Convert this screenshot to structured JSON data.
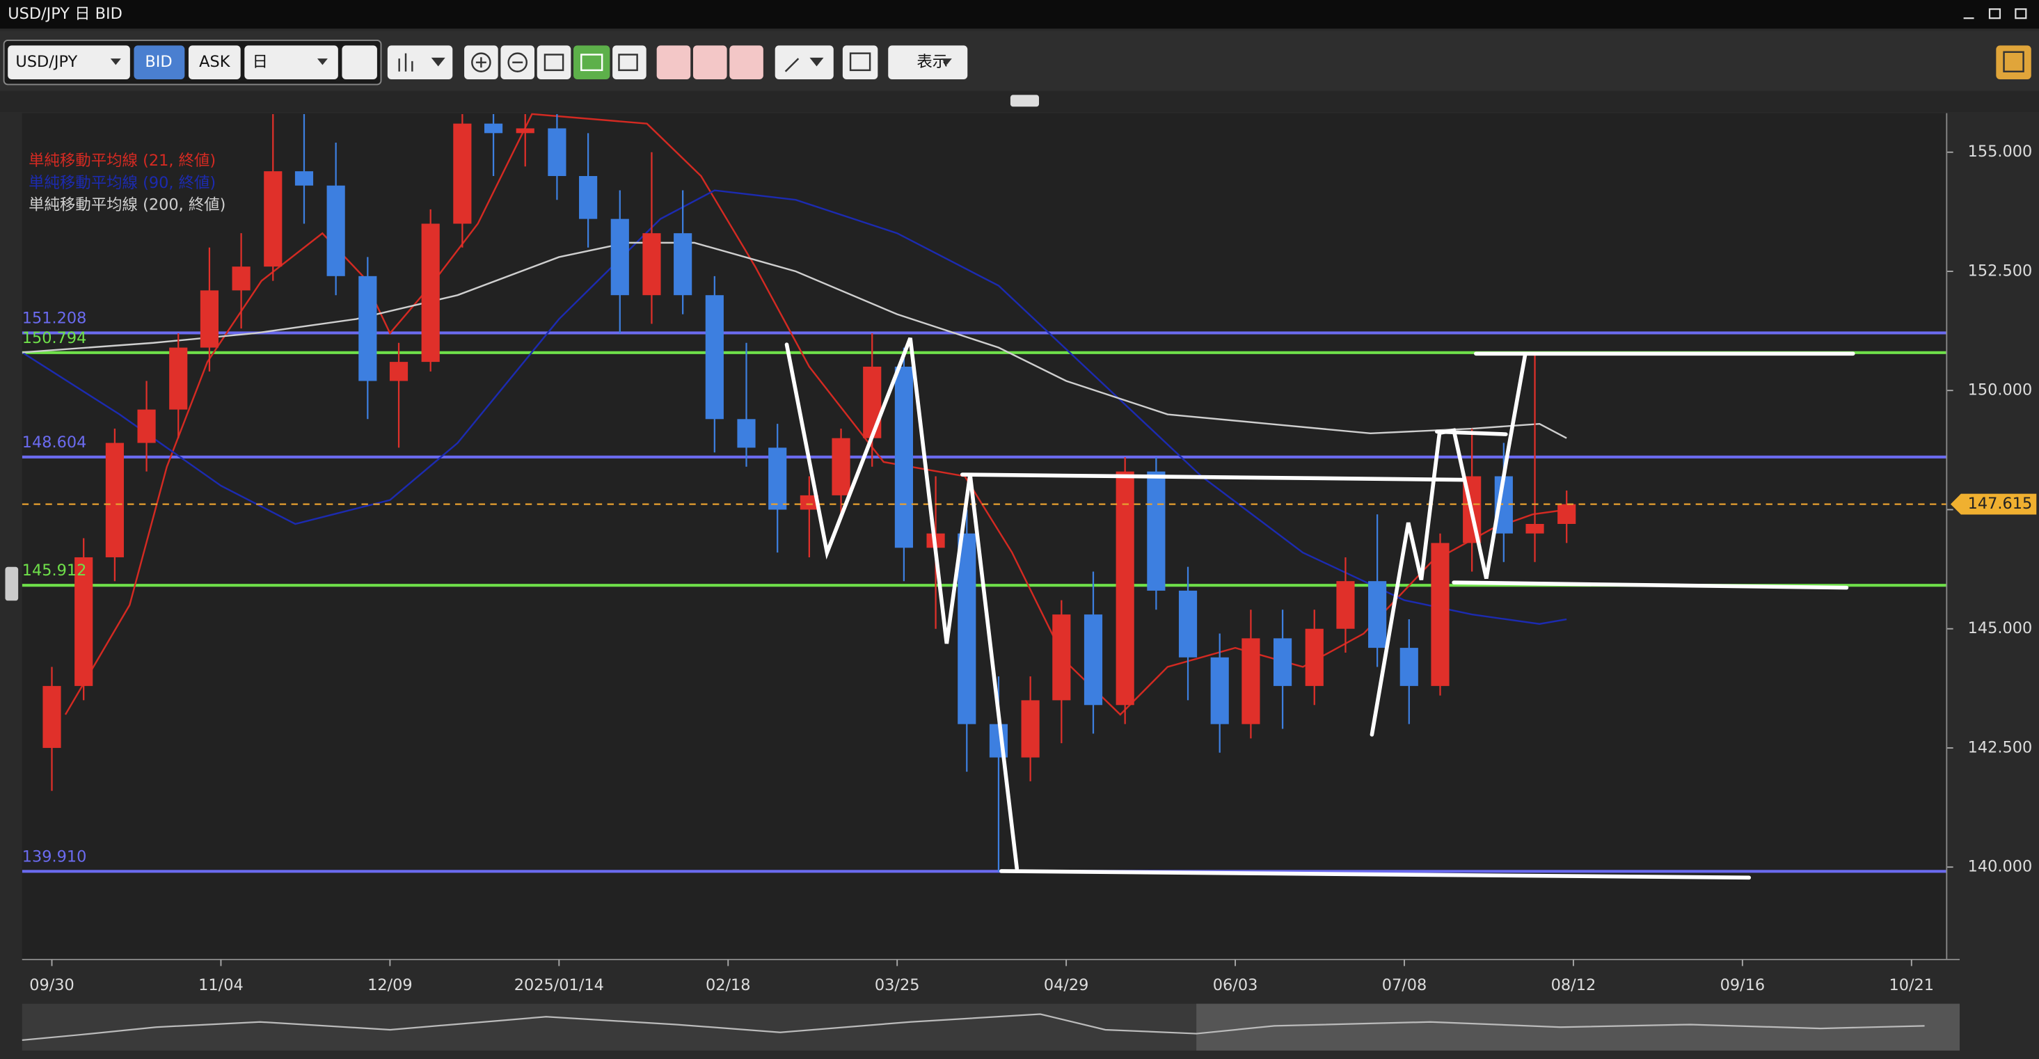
{
  "window": {
    "title": "USD/JPY 日 BID"
  },
  "toolbar": {
    "symbol": "USD/JPY",
    "bid": "BID",
    "ask": "ASK",
    "period": "日",
    "display": "表示"
  },
  "chart_data": {
    "type": "candlestick",
    "x": [
      0,
      4.7,
      9.3,
      14,
      18.7,
      23.3,
      28,
      32.7,
      37.3,
      42,
      46.7,
      51.3,
      56,
      60.7,
      65.3,
      70,
      74.7,
      79.3,
      84,
      88.7,
      93.3,
      98,
      102.7,
      107.3,
      112,
      116.7,
      121.3,
      126,
      130.7,
      135.3,
      140,
      144.7,
      149.3,
      154,
      158.7,
      163.3,
      168,
      172.7,
      177.3,
      182,
      186.7,
      191.3,
      196,
      200.7,
      205.3,
      210,
      214.7,
      219.3,
      224
    ],
    "open": [
      142.5,
      143.8,
      146.5,
      148.9,
      149.6,
      150.9,
      152.1,
      152.6,
      154.6,
      154.3,
      152.4,
      150.2,
      150.6,
      153.5,
      155.6,
      155.4,
      155.5,
      154.5,
      153.6,
      152.0,
      153.3,
      152.0,
      149.4,
      148.8,
      147.5,
      147.8,
      149.0,
      150.5,
      146.7,
      147.0,
      143.0,
      142.3,
      143.5,
      145.3,
      143.4,
      148.3,
      145.8,
      144.4,
      143.0,
      144.8,
      143.8,
      145.0,
      146.0,
      144.6,
      143.8,
      146.8,
      148.2,
      147.0,
      147.2
    ],
    "high": [
      144.2,
      146.9,
      149.2,
      150.2,
      151.2,
      153.0,
      153.3,
      155.8,
      155.8,
      155.2,
      152.8,
      151.0,
      153.8,
      155.8,
      155.8,
      155.8,
      155.8,
      155.4,
      154.2,
      155.0,
      154.2,
      152.4,
      151.0,
      149.3,
      148.2,
      149.2,
      151.2,
      150.9,
      148.2,
      147.5,
      144.0,
      144.0,
      145.6,
      146.2,
      148.6,
      148.6,
      146.3,
      144.9,
      145.4,
      145.4,
      145.4,
      146.5,
      147.4,
      145.2,
      147.0,
      149.2,
      148.9,
      150.8,
      147.9
    ],
    "low": [
      141.6,
      143.5,
      146.0,
      148.3,
      149.0,
      150.4,
      151.3,
      152.3,
      153.5,
      152.0,
      149.4,
      148.8,
      150.4,
      153.0,
      154.5,
      154.7,
      154.0,
      153.0,
      151.2,
      151.4,
      151.6,
      148.7,
      148.4,
      146.6,
      146.5,
      147.4,
      148.4,
      146.0,
      145.0,
      142.0,
      139.9,
      141.8,
      142.6,
      142.8,
      143.0,
      145.4,
      143.5,
      142.4,
      142.7,
      142.9,
      143.4,
      144.5,
      144.2,
      143.0,
      143.6,
      146.2,
      146.4,
      146.4,
      146.8
    ],
    "close": [
      143.8,
      146.5,
      148.9,
      149.6,
      150.9,
      152.1,
      152.6,
      154.6,
      154.3,
      152.4,
      150.2,
      150.6,
      153.5,
      155.6,
      155.4,
      155.5,
      154.5,
      153.6,
      152.0,
      153.3,
      152.0,
      149.4,
      148.8,
      147.5,
      147.8,
      149.0,
      150.5,
      146.7,
      147.0,
      143.0,
      142.3,
      143.5,
      145.3,
      143.4,
      148.3,
      145.8,
      144.4,
      143.0,
      144.8,
      143.8,
      145.0,
      146.0,
      144.6,
      143.8,
      146.8,
      148.2,
      147.0,
      147.2,
      147.615
    ],
    "up_color": "#e0302a",
    "down_color": "#3d7fe0",
    "series": [
      {
        "name": "単純移動平均線 (21, 終値)",
        "color": "#d42a22",
        "x": [
          2,
          11.5,
          17,
          23,
          31,
          40,
          46,
          50,
          56,
          63,
          71,
          88,
          96,
          104,
          112,
          123,
          135,
          142,
          150,
          158,
          165,
          175,
          185,
          194,
          204,
          213,
          219,
          224
        ],
        "values": [
          143.2,
          145.5,
          148.4,
          150.6,
          152.3,
          153.3,
          152.4,
          151.2,
          152.2,
          153.5,
          155.8,
          155.6,
          154.5,
          152.6,
          150.5,
          148.5,
          148.2,
          146.6,
          144.3,
          143.2,
          144.2,
          144.6,
          144.2,
          144.9,
          146.4,
          147.1,
          147.4,
          147.5
        ]
      },
      {
        "name": "単純移動平均線 (90, 終値)",
        "color": "#1c2bb0",
        "x": [
          -4.4,
          10,
          25,
          36,
          50,
          60,
          75,
          90,
          98,
          110,
          125,
          140,
          155,
          170,
          185,
          200,
          210,
          220,
          224
        ],
        "values": [
          150.8,
          149.5,
          148.0,
          147.2,
          147.7,
          148.9,
          151.5,
          153.6,
          154.2,
          154.0,
          153.3,
          152.2,
          150.2,
          148.2,
          146.6,
          145.6,
          145.3,
          145.1,
          145.2
        ]
      },
      {
        "name": "単純移動平均線 (200, 終値)",
        "color": "#cfcfcf",
        "x": [
          -4.4,
          15,
          30,
          45,
          60,
          75,
          85,
          95,
          110,
          125,
          140,
          150,
          165,
          180,
          195,
          210,
          220,
          224
        ],
        "values": [
          150.8,
          151.0,
          151.2,
          151.5,
          152.0,
          152.8,
          153.1,
          153.1,
          152.5,
          151.6,
          150.9,
          150.2,
          149.5,
          149.3,
          149.1,
          149.2,
          149.3,
          149.0
        ]
      }
    ],
    "levels": [
      {
        "value": 151.208,
        "color": "#6b6bf0"
      },
      {
        "value": 150.794,
        "color": "#6fe04a"
      },
      {
        "value": 148.604,
        "color": "#6b6bf0"
      },
      {
        "value": 145.912,
        "color": "#6fe04a"
      },
      {
        "value": {
          "value": 139.91,
          "label": "139.910"
        },
        "color": "#6b6bf0"
      }
    ],
    "current_price": 147.615,
    "xlim": [
      -4.4,
      280.2
    ],
    "xticks": [
      {
        "value": 0,
        "label": "09/30"
      },
      {
        "value": 25,
        "label": "11/04"
      },
      {
        "value": 50,
        "label": "12/09"
      },
      {
        "value": 75,
        "label": "2025/01/14"
      },
      {
        "value": 100,
        "label": "02/18"
      },
      {
        "value": 125,
        "label": "03/25"
      },
      {
        "value": 150,
        "label": "04/29"
      },
      {
        "value": 175,
        "label": "06/03"
      },
      {
        "value": 200,
        "label": "07/08"
      },
      {
        "value": 225,
        "label": "08/12"
      },
      {
        "value": 250,
        "label": "09/16"
      },
      {
        "value": 275,
        "label": "10/21"
      }
    ],
    "ylim": [
      138.06,
      155.82
    ],
    "yticks": [
      {
        "value": 140,
        "label": "140.000"
      },
      {
        "value": 142.5,
        "label": "142.500"
      },
      {
        "value": 145,
        "label": "145.000"
      },
      {
        "value": 147.5,
        "label": "147.500"
      },
      {
        "value": 150,
        "label": "150.000"
      },
      {
        "value": 152.5,
        "label": "152.500"
      },
      {
        "value": 155,
        "label": "155.000"
      }
    ]
  }
}
